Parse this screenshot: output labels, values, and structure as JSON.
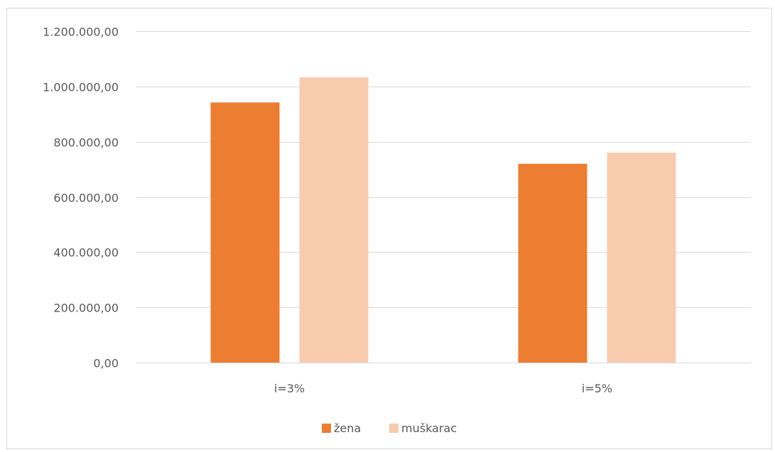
{
  "chart_data": {
    "type": "bar",
    "categories": [
      "i=3%",
      "i=5%"
    ],
    "series": [
      {
        "name": "žena",
        "values": [
          942000,
          720000
        ],
        "color": "#ED7D31"
      },
      {
        "name": "muškarac",
        "values": [
          1033000,
          760000
        ],
        "color": "#F8CBAD"
      }
    ],
    "ylim": [
      0,
      1200000
    ],
    "yticks": [
      0,
      200000,
      400000,
      600000,
      800000,
      1000000,
      1200000
    ],
    "ytick_labels": [
      "0,00",
      "200.000,00",
      "400.000,00",
      "600.000,00",
      "800.000,00",
      "1.000.000,00",
      "1.200.000,00"
    ],
    "grid": true,
    "legend_position": "bottom",
    "gridline_color": "#d9d9d9"
  }
}
